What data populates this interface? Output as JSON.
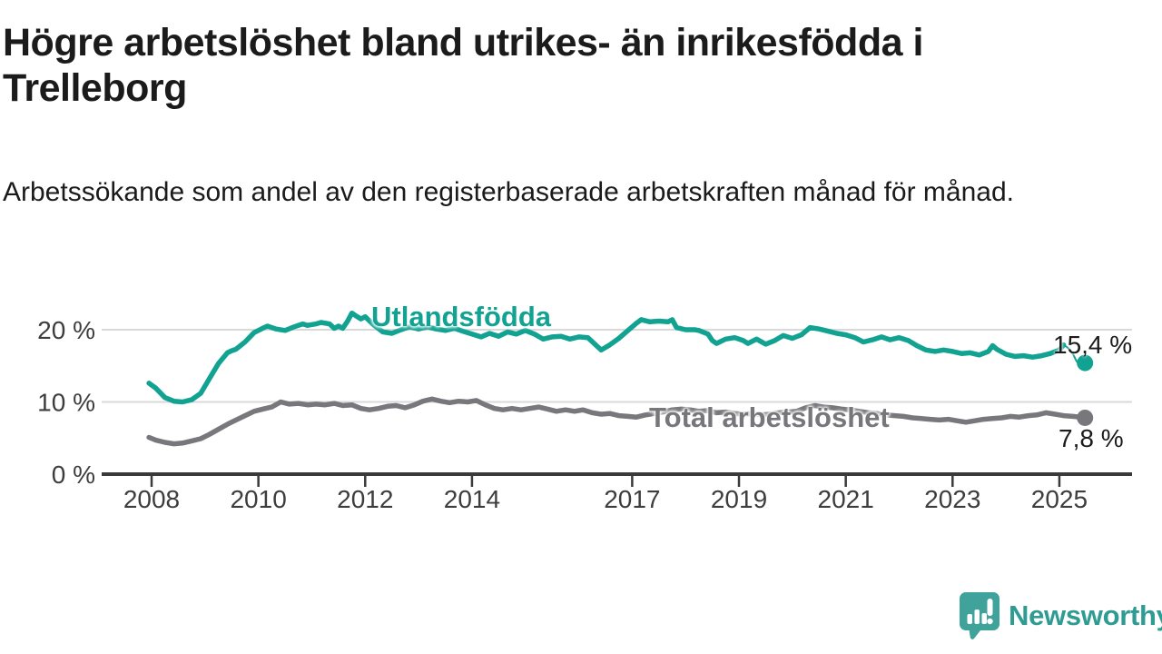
{
  "header": {
    "title": "Högre arbetslöshet bland utrikes- än inrikesfödda i Trelleborg",
    "subtitle": "Arbetssökande som andel av den registerbaserade arbetskraften månad för månad."
  },
  "branding": {
    "logo_text": "Newsworthy",
    "logo_icon": "newsworthy-speech-bubble-barchart-icon"
  },
  "colors": {
    "series_utlandsfodda": "#12a292",
    "series_total": "#77777c",
    "grid": "#d9d9d9",
    "axis": "#3a3a3a",
    "tick_text": "#3d3d3d",
    "text_dark": "#1b1b1b",
    "logo_teal": "#3fa39b"
  },
  "chart_data": {
    "type": "line",
    "title": "Högre arbetslöshet bland utrikes- än inrikesfödda i Trelleborg",
    "xlabel": "",
    "ylabel": "",
    "grid": "horizontal",
    "legend_position": "inline-labels",
    "xlim": [
      2007.0,
      2026.4
    ],
    "ylim": [
      0,
      24
    ],
    "y_ticks": [
      {
        "value": 0,
        "label": "0 %"
      },
      {
        "value": 10,
        "label": "10 %"
      },
      {
        "value": 20,
        "label": "20 %"
      }
    ],
    "x_ticks": [
      {
        "year": 2008,
        "label": "2008"
      },
      {
        "year": 2010,
        "label": "2010"
      },
      {
        "year": 2012,
        "label": "2012"
      },
      {
        "year": 2014,
        "label": "2014"
      },
      {
        "year": 2017,
        "label": "2017"
      },
      {
        "year": 2019,
        "label": "2019"
      },
      {
        "year": 2021,
        "label": "2021"
      },
      {
        "year": 2023,
        "label": "2023"
      },
      {
        "year": 2025,
        "label": "2025"
      }
    ],
    "series": [
      {
        "name": "Utlandsfödda",
        "color": "#12a292",
        "end_label": "15,4 %",
        "end_point": [
          2025.48,
          15.4
        ],
        "connector": true,
        "points": [
          [
            2007.95,
            12.6
          ],
          [
            2008.08,
            11.9
          ],
          [
            2008.25,
            10.6
          ],
          [
            2008.42,
            10.1
          ],
          [
            2008.58,
            10.0
          ],
          [
            2008.75,
            10.3
          ],
          [
            2008.92,
            11.2
          ],
          [
            2009.08,
            13.2
          ],
          [
            2009.25,
            15.3
          ],
          [
            2009.42,
            16.8
          ],
          [
            2009.5,
            17.1
          ],
          [
            2009.58,
            17.3
          ],
          [
            2009.75,
            18.3
          ],
          [
            2009.92,
            19.6
          ],
          [
            2010.08,
            20.2
          ],
          [
            2010.17,
            20.5
          ],
          [
            2010.33,
            20.1
          ],
          [
            2010.5,
            19.9
          ],
          [
            2010.67,
            20.4
          ],
          [
            2010.83,
            20.8
          ],
          [
            2010.92,
            20.6
          ],
          [
            2011.08,
            20.8
          ],
          [
            2011.17,
            21.0
          ],
          [
            2011.33,
            20.8
          ],
          [
            2011.42,
            20.2
          ],
          [
            2011.5,
            20.5
          ],
          [
            2011.58,
            20.2
          ],
          [
            2011.67,
            21.2
          ],
          [
            2011.75,
            22.3
          ],
          [
            2011.83,
            21.9
          ],
          [
            2011.92,
            21.5
          ],
          [
            2012.0,
            21.8
          ],
          [
            2012.17,
            20.6
          ],
          [
            2012.33,
            19.7
          ],
          [
            2012.5,
            19.5
          ],
          [
            2012.67,
            20.0
          ],
          [
            2012.83,
            20.4
          ],
          [
            2013.0,
            20.1
          ],
          [
            2013.17,
            20.4
          ],
          [
            2013.33,
            20.1
          ],
          [
            2013.5,
            19.9
          ],
          [
            2013.67,
            20.2
          ],
          [
            2013.83,
            19.8
          ],
          [
            2014.0,
            19.4
          ],
          [
            2014.17,
            19.0
          ],
          [
            2014.33,
            19.5
          ],
          [
            2014.5,
            19.1
          ],
          [
            2014.67,
            19.7
          ],
          [
            2014.83,
            19.4
          ],
          [
            2015.0,
            19.9
          ],
          [
            2015.17,
            19.4
          ],
          [
            2015.33,
            18.7
          ],
          [
            2015.5,
            19.0
          ],
          [
            2015.67,
            19.1
          ],
          [
            2015.83,
            18.7
          ],
          [
            2016.0,
            19.0
          ],
          [
            2016.17,
            18.9
          ],
          [
            2016.33,
            17.8
          ],
          [
            2016.42,
            17.2
          ],
          [
            2016.58,
            17.9
          ],
          [
            2016.75,
            18.8
          ],
          [
            2016.92,
            19.9
          ],
          [
            2017.08,
            20.9
          ],
          [
            2017.17,
            21.4
          ],
          [
            2017.33,
            21.1
          ],
          [
            2017.5,
            21.2
          ],
          [
            2017.67,
            21.1
          ],
          [
            2017.75,
            21.4
          ],
          [
            2017.83,
            20.3
          ],
          [
            2018.0,
            20.0
          ],
          [
            2018.17,
            20.0
          ],
          [
            2018.25,
            19.9
          ],
          [
            2018.42,
            19.4
          ],
          [
            2018.5,
            18.5
          ],
          [
            2018.58,
            18.1
          ],
          [
            2018.75,
            18.7
          ],
          [
            2018.92,
            18.9
          ],
          [
            2019.08,
            18.5
          ],
          [
            2019.17,
            18.1
          ],
          [
            2019.33,
            18.7
          ],
          [
            2019.5,
            18.0
          ],
          [
            2019.67,
            18.5
          ],
          [
            2019.83,
            19.2
          ],
          [
            2020.0,
            18.8
          ],
          [
            2020.17,
            19.3
          ],
          [
            2020.33,
            20.3
          ],
          [
            2020.5,
            20.1
          ],
          [
            2020.67,
            19.8
          ],
          [
            2020.83,
            19.5
          ],
          [
            2021.0,
            19.3
          ],
          [
            2021.17,
            18.9
          ],
          [
            2021.33,
            18.3
          ],
          [
            2021.5,
            18.6
          ],
          [
            2021.67,
            19.0
          ],
          [
            2021.83,
            18.6
          ],
          [
            2022.0,
            18.9
          ],
          [
            2022.17,
            18.5
          ],
          [
            2022.33,
            17.8
          ],
          [
            2022.5,
            17.2
          ],
          [
            2022.67,
            17.0
          ],
          [
            2022.83,
            17.2
          ],
          [
            2023.0,
            17.0
          ],
          [
            2023.17,
            16.7
          ],
          [
            2023.33,
            16.8
          ],
          [
            2023.5,
            16.5
          ],
          [
            2023.67,
            17.0
          ],
          [
            2023.75,
            17.8
          ],
          [
            2023.83,
            17.3
          ],
          [
            2024.0,
            16.6
          ],
          [
            2024.17,
            16.3
          ],
          [
            2024.33,
            16.4
          ],
          [
            2024.5,
            16.2
          ],
          [
            2024.67,
            16.4
          ],
          [
            2024.83,
            16.7
          ],
          [
            2025.0,
            17.2
          ],
          [
            2025.08,
            17.9
          ]
        ]
      },
      {
        "name": "Total arbetslöshet",
        "color": "#77777c",
        "end_label": "7,8 %",
        "end_point": [
          2025.48,
          7.8
        ],
        "connector": false,
        "points": [
          [
            2007.95,
            5.1
          ],
          [
            2008.08,
            4.7
          ],
          [
            2008.25,
            4.4
          ],
          [
            2008.42,
            4.2
          ],
          [
            2008.58,
            4.3
          ],
          [
            2008.75,
            4.6
          ],
          [
            2008.92,
            4.9
          ],
          [
            2009.08,
            5.5
          ],
          [
            2009.25,
            6.2
          ],
          [
            2009.42,
            6.9
          ],
          [
            2009.58,
            7.5
          ],
          [
            2009.75,
            8.1
          ],
          [
            2009.92,
            8.7
          ],
          [
            2010.08,
            9.0
          ],
          [
            2010.25,
            9.3
          ],
          [
            2010.42,
            10.0
          ],
          [
            2010.58,
            9.7
          ],
          [
            2010.75,
            9.8
          ],
          [
            2010.92,
            9.6
          ],
          [
            2011.08,
            9.7
          ],
          [
            2011.25,
            9.6
          ],
          [
            2011.42,
            9.8
          ],
          [
            2011.58,
            9.5
          ],
          [
            2011.75,
            9.6
          ],
          [
            2011.92,
            9.1
          ],
          [
            2012.08,
            8.9
          ],
          [
            2012.25,
            9.1
          ],
          [
            2012.42,
            9.4
          ],
          [
            2012.58,
            9.5
          ],
          [
            2012.75,
            9.2
          ],
          [
            2012.92,
            9.6
          ],
          [
            2013.08,
            10.1
          ],
          [
            2013.25,
            10.4
          ],
          [
            2013.42,
            10.1
          ],
          [
            2013.58,
            9.9
          ],
          [
            2013.75,
            10.1
          ],
          [
            2013.92,
            10.0
          ],
          [
            2014.08,
            10.2
          ],
          [
            2014.25,
            9.6
          ],
          [
            2014.42,
            9.1
          ],
          [
            2014.58,
            8.9
          ],
          [
            2014.75,
            9.1
          ],
          [
            2014.92,
            8.9
          ],
          [
            2015.08,
            9.1
          ],
          [
            2015.25,
            9.3
          ],
          [
            2015.42,
            9.0
          ],
          [
            2015.58,
            8.7
          ],
          [
            2015.75,
            8.9
          ],
          [
            2015.92,
            8.7
          ],
          [
            2016.08,
            8.9
          ],
          [
            2016.25,
            8.5
          ],
          [
            2016.42,
            8.3
          ],
          [
            2016.58,
            8.4
          ],
          [
            2016.75,
            8.1
          ],
          [
            2016.92,
            8.0
          ],
          [
            2017.08,
            7.9
          ],
          [
            2017.25,
            8.2
          ],
          [
            2017.42,
            8.4
          ],
          [
            2017.58,
            8.6
          ],
          [
            2017.75,
            8.9
          ],
          [
            2017.92,
            9.0
          ],
          [
            2018.08,
            8.9
          ],
          [
            2018.25,
            8.7
          ],
          [
            2018.42,
            8.8
          ],
          [
            2018.58,
            8.5
          ],
          [
            2018.75,
            8.6
          ],
          [
            2018.92,
            8.4
          ],
          [
            2019.08,
            8.3
          ],
          [
            2019.25,
            8.4
          ],
          [
            2019.42,
            8.2
          ],
          [
            2019.58,
            8.3
          ],
          [
            2019.75,
            8.5
          ],
          [
            2019.92,
            8.6
          ],
          [
            2020.08,
            8.7
          ],
          [
            2020.25,
            9.2
          ],
          [
            2020.42,
            9.5
          ],
          [
            2020.58,
            9.3
          ],
          [
            2020.75,
            9.2
          ],
          [
            2020.92,
            9.0
          ],
          [
            2021.08,
            8.9
          ],
          [
            2021.25,
            8.7
          ],
          [
            2021.42,
            8.5
          ],
          [
            2021.58,
            8.4
          ],
          [
            2021.75,
            8.2
          ],
          [
            2021.92,
            8.1
          ],
          [
            2022.08,
            8.0
          ],
          [
            2022.25,
            7.8
          ],
          [
            2022.42,
            7.7
          ],
          [
            2022.58,
            7.6
          ],
          [
            2022.75,
            7.5
          ],
          [
            2022.92,
            7.6
          ],
          [
            2023.08,
            7.4
          ],
          [
            2023.25,
            7.2
          ],
          [
            2023.42,
            7.4
          ],
          [
            2023.58,
            7.6
          ],
          [
            2023.75,
            7.7
          ],
          [
            2023.92,
            7.8
          ],
          [
            2024.08,
            8.0
          ],
          [
            2024.25,
            7.9
          ],
          [
            2024.42,
            8.1
          ],
          [
            2024.58,
            8.2
          ],
          [
            2024.75,
            8.5
          ],
          [
            2024.92,
            8.3
          ],
          [
            2025.08,
            8.1
          ],
          [
            2025.25,
            8.0
          ],
          [
            2025.4,
            7.9
          ]
        ]
      }
    ]
  }
}
